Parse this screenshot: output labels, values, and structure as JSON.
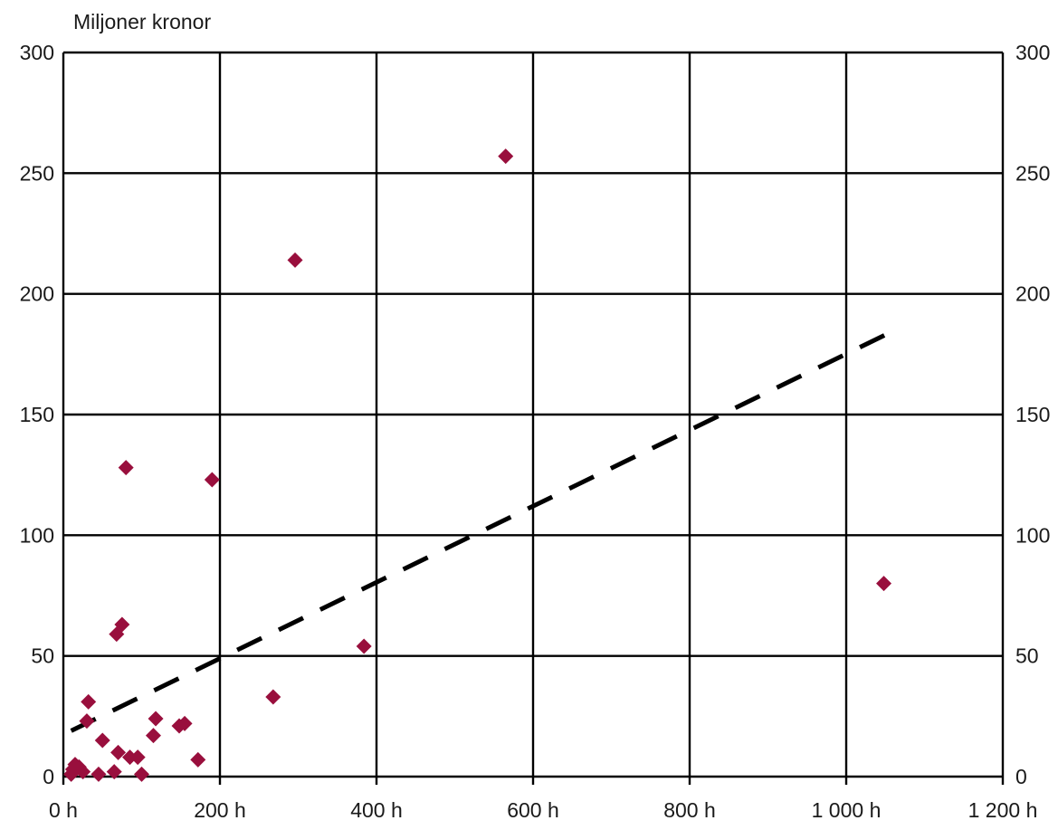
{
  "chart_data": {
    "type": "scatter",
    "title": "",
    "y_unit_label": "Miljoner kronor",
    "xlabel": "",
    "ylabel": "Miljoner kronor",
    "xlim": [
      0,
      1200
    ],
    "ylim": [
      0,
      300
    ],
    "x_ticks": [
      0,
      200,
      400,
      600,
      800,
      1000,
      1200
    ],
    "x_tick_labels": [
      "0 h",
      "200 h",
      "400 h",
      "600 h",
      "800 h",
      "1 000 h",
      "1 200 h"
    ],
    "y_ticks": [
      0,
      50,
      100,
      150,
      200,
      250,
      300
    ],
    "y_tick_labels": [
      "0",
      "50",
      "100",
      "150",
      "200",
      "250",
      "300"
    ],
    "right_axis_mirrors_left": true,
    "grid": true,
    "legend": "none",
    "marker": "diamond",
    "colors": {
      "points": "#990f3d",
      "trendline": "#000000",
      "grid": "#000000",
      "text": "#1a1a1a"
    },
    "points": [
      {
        "x": 10,
        "y": 1
      },
      {
        "x": 12,
        "y": 3
      },
      {
        "x": 15,
        "y": 5
      },
      {
        "x": 20,
        "y": 4
      },
      {
        "x": 25,
        "y": 2
      },
      {
        "x": 30,
        "y": 23
      },
      {
        "x": 32,
        "y": 31
      },
      {
        "x": 45,
        "y": 1
      },
      {
        "x": 50,
        "y": 15
      },
      {
        "x": 65,
        "y": 2
      },
      {
        "x": 68,
        "y": 59
      },
      {
        "x": 70,
        "y": 10
      },
      {
        "x": 75,
        "y": 63
      },
      {
        "x": 80,
        "y": 128
      },
      {
        "x": 85,
        "y": 8
      },
      {
        "x": 95,
        "y": 8
      },
      {
        "x": 100,
        "y": 1
      },
      {
        "x": 115,
        "y": 17
      },
      {
        "x": 118,
        "y": 24
      },
      {
        "x": 148,
        "y": 21
      },
      {
        "x": 155,
        "y": 22
      },
      {
        "x": 172,
        "y": 7
      },
      {
        "x": 190,
        "y": 123
      },
      {
        "x": 268,
        "y": 33
      },
      {
        "x": 296,
        "y": 214
      },
      {
        "x": 384,
        "y": 54
      },
      {
        "x": 565,
        "y": 257
      },
      {
        "x": 1048,
        "y": 80
      }
    ],
    "trendline": {
      "style": "dashed",
      "from": {
        "x": 10,
        "y": 19
      },
      "to": {
        "x": 1050,
        "y": 183
      }
    }
  }
}
